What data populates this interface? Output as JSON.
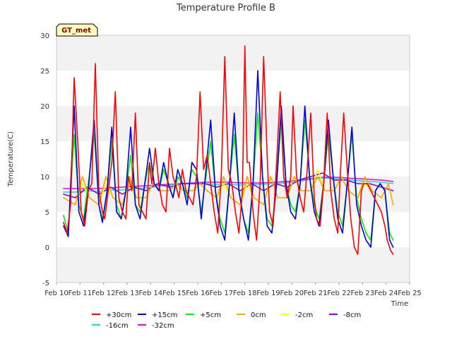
{
  "chart_data": {
    "type": "line",
    "title": "Temperature Profile B",
    "xlabel": "Time",
    "ylabel": "Temperature(C)",
    "badge": "GT_met",
    "ylim": [
      -5,
      30
    ],
    "yticks": [
      -5,
      0,
      5,
      10,
      15,
      20,
      25,
      30
    ],
    "xlim": [
      10,
      25
    ],
    "xticks": [
      {
        "value": 10,
        "label": "Feb 10"
      },
      {
        "value": 11,
        "label": "Feb 11"
      },
      {
        "value": 12,
        "label": "Feb 12"
      },
      {
        "value": 13,
        "label": "Feb 13"
      },
      {
        "value": 14,
        "label": "Feb 14"
      },
      {
        "value": 15,
        "label": "Feb 15"
      },
      {
        "value": 16,
        "label": "Feb 16"
      },
      {
        "value": 17,
        "label": "Feb 17"
      },
      {
        "value": 18,
        "label": "Feb 18"
      },
      {
        "value": 19,
        "label": "Feb 19"
      },
      {
        "value": 20,
        "label": "Feb 20"
      },
      {
        "value": 21,
        "label": "Feb 21"
      },
      {
        "value": 22,
        "label": "Feb 22"
      },
      {
        "value": 23,
        "label": "Feb 23"
      },
      {
        "value": 24,
        "label": "Feb 24"
      },
      {
        "value": 25,
        "label": "Feb 25"
      }
    ],
    "grid": "horizontal bands",
    "legend_placement": "bottom",
    "series": [
      {
        "name": "+30cm",
        "color": "#ff0000",
        "x": [
          10.3,
          10.45,
          10.6,
          10.75,
          10.9,
          11.05,
          11.2,
          11.35,
          11.5,
          11.65,
          11.8,
          11.95,
          12.05,
          12.2,
          12.35,
          12.5,
          12.65,
          12.8,
          12.95,
          13.05,
          13.2,
          13.35,
          13.5,
          13.65,
          13.8,
          13.95,
          14.05,
          14.2,
          14.35,
          14.5,
          14.65,
          14.8,
          14.95,
          15.05,
          15.2,
          15.35,
          15.5,
          15.65,
          15.8,
          15.95,
          16.1,
          16.25,
          16.4,
          16.55,
          16.7,
          16.85,
          17.0,
          17.15,
          17.3,
          17.45,
          17.6,
          17.75,
          17.9,
          18.0,
          18.1,
          18.2,
          18.35,
          18.5,
          18.65,
          18.8,
          18.95,
          19.05,
          19.2,
          19.35,
          19.5,
          19.65,
          19.8,
          19.95,
          20.05,
          20.2,
          20.35,
          20.5,
          20.65,
          20.8,
          20.95,
          21.05,
          21.2,
          21.35,
          21.5,
          21.65,
          21.8,
          21.95,
          22.05,
          22.2,
          22.35,
          22.5,
          22.65,
          22.8,
          22.95,
          23.05,
          23.2,
          23.35,
          23.5,
          23.65,
          23.8,
          23.95,
          24.05,
          24.2,
          24.3
        ],
        "y": [
          3.5,
          2,
          6,
          24,
          15,
          5,
          3,
          8,
          9,
          26,
          8,
          5,
          4,
          8,
          12,
          22,
          7,
          5,
          4,
          10,
          8,
          19,
          6,
          5,
          4,
          12,
          9,
          14,
          9,
          6,
          5,
          14,
          10,
          9,
          7,
          11,
          8,
          7,
          6,
          10,
          22,
          11,
          13,
          9,
          5,
          2,
          10,
          27,
          11,
          9,
          5,
          2,
          8,
          28.5,
          12,
          12,
          5,
          1,
          9,
          27,
          13,
          5,
          3,
          12,
          22,
          10,
          7,
          10,
          20,
          10,
          7,
          5,
          11,
          19,
          7,
          4,
          3,
          9,
          19,
          8,
          4,
          2,
          10,
          19,
          11,
          4,
          0,
          -1,
          8,
          9,
          9,
          8,
          7,
          6,
          5,
          3,
          1,
          -0.5,
          -1
        ]
      },
      {
        "name": "+15cm",
        "color": "#0000dd",
        "x": [
          10.3,
          10.5,
          10.75,
          10.95,
          11.15,
          11.35,
          11.6,
          11.8,
          11.95,
          12.15,
          12.35,
          12.55,
          12.75,
          12.95,
          13.15,
          13.35,
          13.55,
          13.75,
          13.95,
          14.15,
          14.35,
          14.55,
          14.75,
          14.95,
          15.15,
          15.35,
          15.55,
          15.75,
          15.95,
          16.15,
          16.35,
          16.55,
          16.75,
          16.95,
          17.15,
          17.35,
          17.55,
          17.75,
          17.95,
          18.15,
          18.35,
          18.55,
          18.75,
          18.95,
          19.15,
          19.35,
          19.55,
          19.75,
          19.95,
          20.15,
          20.35,
          20.55,
          20.75,
          20.95,
          21.15,
          21.35,
          21.55,
          21.75,
          21.95,
          22.15,
          22.35,
          22.55,
          22.75,
          22.95,
          23.15,
          23.35,
          23.55,
          23.75,
          23.95,
          24.15,
          24.3
        ],
        "y": [
          3,
          1.5,
          20,
          5,
          3,
          8,
          18,
          6,
          3.5,
          8,
          17,
          5,
          4,
          8,
          17,
          6,
          4,
          9,
          14,
          9,
          8,
          12,
          9,
          7,
          11,
          9,
          6,
          12,
          11,
          4,
          11,
          18,
          8,
          3,
          1,
          9,
          19,
          8,
          4,
          1,
          9,
          25,
          10,
          3,
          2,
          9,
          20,
          9,
          5,
          4,
          9,
          20,
          10,
          5,
          3,
          9,
          18,
          10,
          4,
          2,
          9,
          17,
          6,
          3,
          1,
          0,
          8,
          9,
          8,
          1,
          0
        ]
      },
      {
        "name": "+5cm",
        "color": "#00ee00",
        "x": [
          10.3,
          10.5,
          10.75,
          10.95,
          11.15,
          11.35,
          11.6,
          11.8,
          11.95,
          12.15,
          12.35,
          12.55,
          12.75,
          12.95,
          13.15,
          13.35,
          13.55,
          13.75,
          13.95,
          14.15,
          14.35,
          14.55,
          14.75,
          14.95,
          15.15,
          15.35,
          15.55,
          15.75,
          15.95,
          16.15,
          16.35,
          16.55,
          16.75,
          16.95,
          17.15,
          17.35,
          17.55,
          17.75,
          17.95,
          18.15,
          18.35,
          18.55,
          18.75,
          18.95,
          19.15,
          19.35,
          19.55,
          19.75,
          19.95,
          20.15,
          20.35,
          20.55,
          20.75,
          20.95,
          21.15,
          21.35,
          21.55,
          21.75,
          21.95,
          22.15,
          22.35,
          22.55,
          22.75,
          22.95,
          23.15,
          23.35,
          23.55,
          23.75,
          23.95,
          24.15,
          24.3
        ],
        "y": [
          4.5,
          2,
          16,
          6,
          4,
          9,
          16,
          6,
          4,
          8,
          15,
          6,
          4,
          8,
          13,
          6,
          5,
          9,
          12,
          9,
          8,
          11,
          9,
          7,
          10,
          9,
          7,
          11,
          10,
          5,
          10,
          15,
          8,
          4,
          2,
          9,
          16,
          8,
          4,
          2,
          9,
          19,
          10,
          4,
          3,
          9,
          18,
          9,
          6,
          5,
          9,
          18,
          10,
          6,
          4,
          9,
          16,
          10,
          5,
          3,
          9,
          16,
          7,
          4,
          2,
          1,
          8,
          9,
          8,
          2,
          1
        ]
      },
      {
        "name": "0cm",
        "color": "#ffa500",
        "x": [
          10.3,
          10.8,
          11.1,
          11.4,
          11.8,
          12.1,
          12.4,
          12.8,
          13.1,
          13.4,
          13.8,
          14.1,
          14.4,
          14.8,
          15.1,
          15.4,
          15.8,
          16.1,
          16.4,
          16.8,
          17.1,
          17.4,
          17.8,
          18.1,
          18.4,
          18.8,
          19.1,
          19.4,
          19.8,
          20.1,
          20.4,
          20.8,
          21.1,
          21.4,
          21.8,
          22.1,
          22.4,
          22.8,
          23.1,
          23.4,
          23.8,
          24.1,
          24.3
        ],
        "y": [
          7,
          6,
          10,
          7,
          6,
          10,
          7,
          6,
          10,
          7,
          7,
          9,
          8,
          8,
          9,
          8,
          8,
          9,
          8,
          7,
          10,
          7,
          6,
          10,
          7,
          6,
          10,
          7,
          7,
          10,
          8,
          8,
          10,
          8,
          8,
          10,
          8,
          7,
          10,
          8,
          7,
          9,
          6
        ]
      },
      {
        "name": "-2cm",
        "color": "#ffff00",
        "x": [
          10.3,
          10.8,
          11.1,
          11.4,
          11.8,
          12.1,
          12.4,
          12.8,
          13.1,
          13.4,
          13.8,
          14.1,
          14.4,
          14.8,
          15.1,
          15.4,
          15.8,
          16.1,
          16.4,
          16.8,
          17.1,
          17.4,
          17.8,
          18.1,
          18.4,
          18.8,
          19.1,
          19.4,
          19.8,
          20.1,
          20.4,
          20.8,
          21.1,
          21.4,
          21.8,
          22.1,
          22.4,
          22.8,
          23.1,
          23.4,
          23.8,
          24.1,
          24.3
        ],
        "y": [
          7,
          6,
          9,
          7,
          6,
          9,
          7,
          6,
          9,
          7,
          7,
          9,
          8,
          8,
          9,
          8,
          8,
          9,
          8,
          7,
          9,
          7,
          6,
          9,
          7,
          6,
          10,
          7,
          7,
          10,
          8,
          8,
          11,
          8,
          8,
          10,
          8,
          7,
          9,
          8,
          7,
          9,
          6
        ]
      },
      {
        "name": "-8cm",
        "color": "#8800cc",
        "x": [
          10.3,
          10.8,
          11.3,
          11.8,
          12.3,
          12.8,
          13.3,
          13.8,
          14.3,
          14.8,
          15.3,
          15.8,
          16.3,
          16.8,
          17.3,
          17.8,
          18.3,
          18.8,
          19.3,
          19.8,
          20.3,
          20.8,
          21.3,
          21.8,
          22.3,
          22.8,
          23.3,
          23.8,
          24.3
        ],
        "y": [
          7.5,
          7,
          8.5,
          7.5,
          8.5,
          7.5,
          8.5,
          8,
          9,
          8.5,
          9,
          9,
          9,
          8.5,
          9,
          8,
          9,
          8,
          9,
          8.5,
          9.5,
          10,
          10.5,
          9.5,
          9.5,
          9,
          9,
          8.5,
          8
        ]
      },
      {
        "name": "-16cm",
        "color": "#00e5ee",
        "x": [
          10.3,
          10.8,
          11.3,
          11.8,
          12.3,
          12.8,
          13.3,
          13.8,
          14.3,
          14.8,
          15.3,
          15.8,
          16.3,
          16.8,
          17.3,
          17.8,
          18.3,
          18.8,
          19.3,
          19.8,
          20.3,
          20.8,
          21.3,
          21.8,
          22.3,
          22.8,
          23.3,
          23.8,
          24.3
        ],
        "y": [
          7.8,
          7.8,
          8,
          7.9,
          8.1,
          8.1,
          8.3,
          8.4,
          8.6,
          8.8,
          9,
          9,
          9,
          8.9,
          8.9,
          8.8,
          8.9,
          8.9,
          9,
          9.1,
          9.3,
          9.6,
          9.8,
          9.7,
          9.6,
          9.4,
          9.3,
          9.2,
          9
        ]
      },
      {
        "name": "-32cm",
        "color": "#ee00ee",
        "x": [
          10.3,
          10.8,
          11.3,
          11.8,
          12.3,
          12.8,
          13.3,
          13.8,
          14.3,
          14.8,
          15.3,
          15.8,
          16.3,
          16.8,
          17.3,
          17.8,
          18.3,
          18.8,
          19.3,
          19.8,
          20.3,
          20.8,
          21.3,
          21.8,
          22.3,
          22.8,
          23.3,
          23.8,
          24.3
        ],
        "y": [
          8.3,
          8.3,
          8.3,
          8.3,
          8.4,
          8.5,
          8.6,
          8.7,
          8.8,
          8.9,
          9,
          9.1,
          9.2,
          9.2,
          9.2,
          9.1,
          9.1,
          9.1,
          9.2,
          9.3,
          9.5,
          9.7,
          9.9,
          9.9,
          9.8,
          9.7,
          9.6,
          9.5,
          9.3
        ]
      }
    ]
  }
}
